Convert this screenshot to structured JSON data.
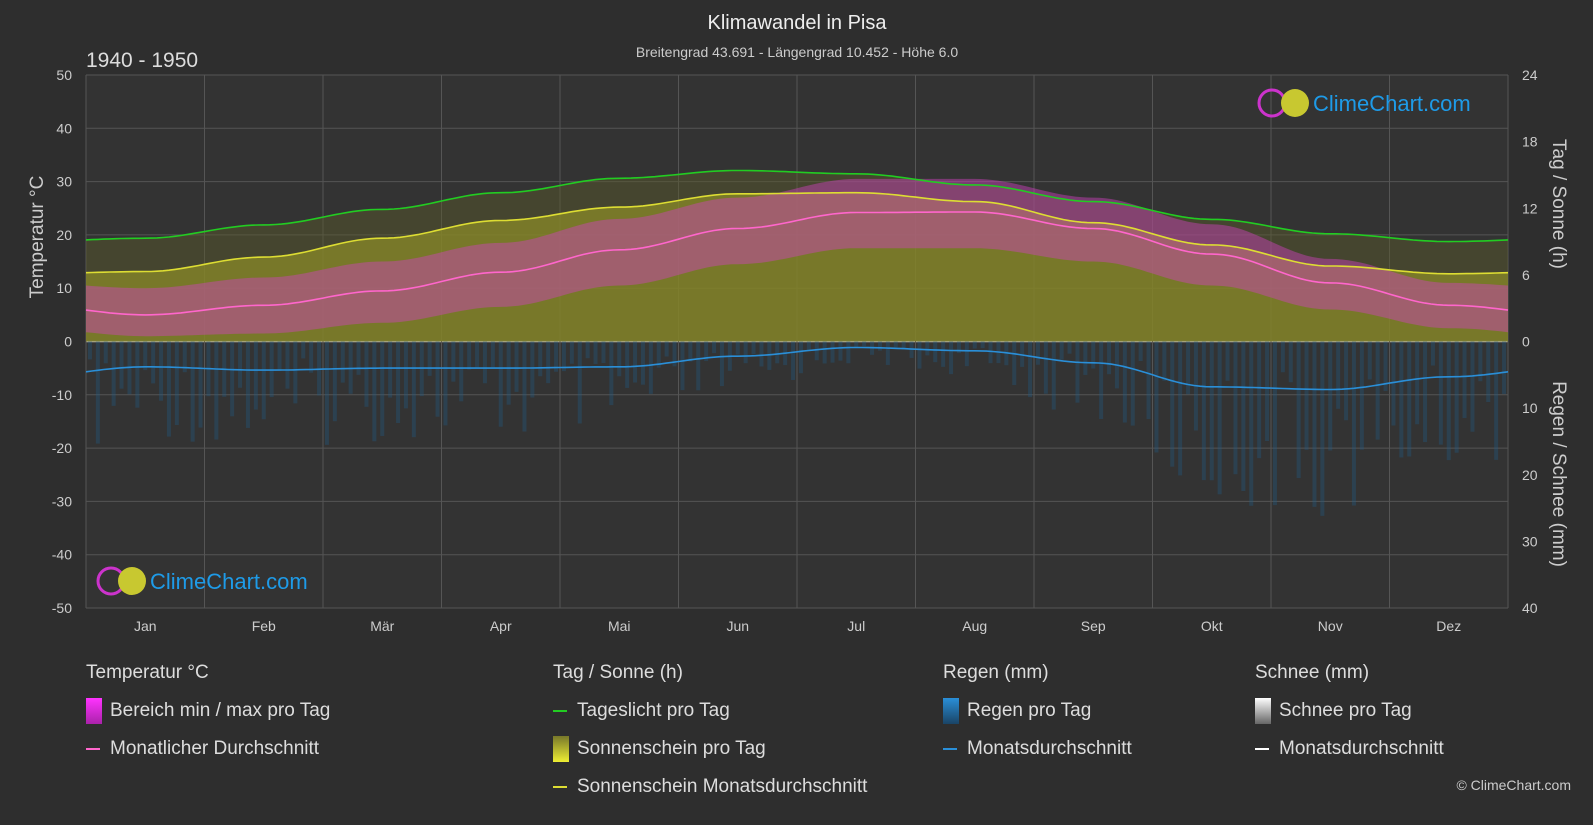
{
  "header": {
    "title": "Klimawandel in Pisa",
    "subtitle": "Breitengrad 43.691 - Längengrad 10.452 - Höhe 6.0",
    "period": "1940 - 1950"
  },
  "logo_text": "ClimeChart.com",
  "copyright": "© ClimeChart.com",
  "chart_data": {
    "type": "line",
    "categories": [
      "Jan",
      "Feb",
      "Mär",
      "Apr",
      "Mai",
      "Jun",
      "Jul",
      "Aug",
      "Sep",
      "Okt",
      "Nov",
      "Dez"
    ],
    "y_left": {
      "label": "Temperatur °C",
      "ylim": [
        -50,
        50
      ],
      "ticks": [
        50,
        40,
        30,
        20,
        10,
        0,
        -10,
        -20,
        -30,
        -40,
        -50
      ]
    },
    "y_right_top": {
      "label": "Tag / Sonne (h)",
      "ylim": [
        0,
        24
      ],
      "ticks": [
        24,
        18,
        12,
        6,
        0
      ]
    },
    "y_right_bottom": {
      "label": "Regen / Schnee (mm)",
      "ylim": [
        0,
        40
      ],
      "ticks": [
        0,
        10,
        20,
        30,
        40
      ]
    },
    "grid": true,
    "series": [
      {
        "name": "Tageslicht pro Tag",
        "axis": "sun",
        "color": "#22cc22",
        "values": [
          9.3,
          10.5,
          11.9,
          13.4,
          14.7,
          15.4,
          15.1,
          14.1,
          12.6,
          11.0,
          9.7,
          9.0
        ]
      },
      {
        "name": "Sonnenschein Monatsdurchschnitt",
        "axis": "sun",
        "color": "#dddd33",
        "values": [
          6.3,
          7.6,
          9.3,
          10.9,
          12.1,
          13.3,
          13.4,
          12.6,
          10.7,
          8.7,
          6.8,
          6.1
        ]
      },
      {
        "name": "Monatlicher Durchschnitt",
        "axis": "temp",
        "color": "#ff66cc",
        "values": [
          5.0,
          6.8,
          9.5,
          13.0,
          17.2,
          21.2,
          24.2,
          24.3,
          21.2,
          16.4,
          11.0,
          6.8
        ]
      },
      {
        "name": "Monatsdurchschnitt",
        "axis": "rain",
        "color": "#2a8fd8",
        "values": [
          3.8,
          4.3,
          4.0,
          4.0,
          3.8,
          2.2,
          0.9,
          1.4,
          3.2,
          6.8,
          7.2,
          5.3
        ]
      }
    ],
    "temp_range": {
      "name": "Bereich min / max pro Tag",
      "min": [
        1.0,
        1.5,
        3.5,
        6.5,
        10.5,
        14.5,
        17.5,
        17.5,
        15.0,
        10.5,
        6.0,
        2.5
      ],
      "max": [
        10.0,
        12.0,
        15.0,
        18.5,
        23.0,
        27.0,
        30.5,
        30.5,
        27.0,
        22.0,
        15.5,
        11.0
      ]
    }
  },
  "legend": {
    "temp": {
      "heading": "Temperatur °C",
      "items": [
        "Bereich min / max pro Tag",
        "Monatlicher Durchschnitt"
      ]
    },
    "sun": {
      "heading": "Tag / Sonne (h)",
      "items": [
        "Tageslicht pro Tag",
        "Sonnenschein pro Tag",
        "Sonnenschein Monatsdurchschnitt"
      ]
    },
    "rain": {
      "heading": "Regen (mm)",
      "items": [
        "Regen pro Tag",
        "Monatsdurchschnitt"
      ]
    },
    "snow": {
      "heading": "Schnee (mm)",
      "items": [
        "Schnee pro Tag",
        "Monatsdurchschnitt"
      ]
    }
  },
  "colors": {
    "background": "#2e2e2e",
    "daylight": "#22cc22",
    "sunshine": "#dddd33",
    "temp_avg": "#ff66cc",
    "temp_range": "#cc33cc",
    "rain": "#2a8fd8",
    "snow": "#ffffff"
  }
}
